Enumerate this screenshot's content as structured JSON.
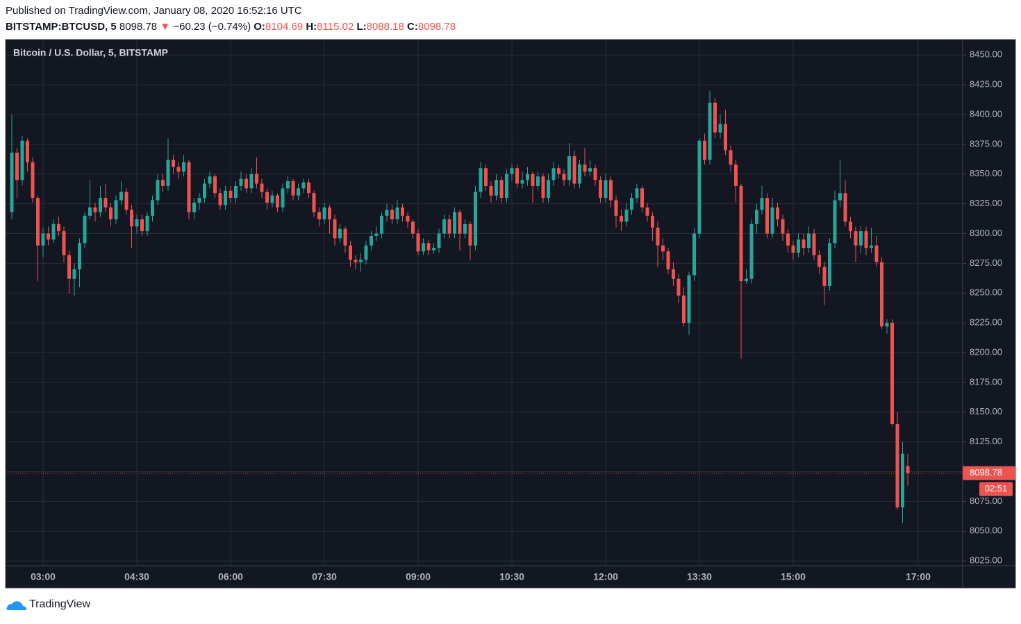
{
  "header": {
    "published": "Published on TradingView.com, January 08, 2020 16:52:16 UTC",
    "symbol": "BITSTAMP:BTCUSD, 5",
    "last": 8098.78,
    "change": "−60.23 (−0.74%)",
    "o_label": "O:",
    "o": 8104.69,
    "h_label": "H:",
    "h": 8115.02,
    "l_label": "L:",
    "l": 8088.18,
    "c_label": "C:",
    "c": 8098.78
  },
  "footer": {
    "brand": "TradingView"
  },
  "chart_data": {
    "type": "candlestick",
    "title": "Bitcoin / U.S. Dollar, 5, BITSTAMP",
    "up_color": "#26a69a",
    "down_color": "#ef5350",
    "grid": true,
    "countdown": "02:51",
    "x": [
      "02:30",
      "02:35",
      "02:40",
      "02:45",
      "02:50",
      "02:55",
      "03:00",
      "03:05",
      "03:10",
      "03:15",
      "03:20",
      "03:25",
      "03:30",
      "03:35",
      "03:40",
      "03:45",
      "03:50",
      "03:55",
      "04:00",
      "04:05",
      "04:10",
      "04:15",
      "04:20",
      "04:25",
      "04:30",
      "04:35",
      "04:40",
      "04:45",
      "04:50",
      "04:55",
      "05:00",
      "05:05",
      "05:10",
      "05:15",
      "05:20",
      "05:25",
      "05:30",
      "05:35",
      "05:40",
      "05:45",
      "05:50",
      "05:55",
      "06:00",
      "06:05",
      "06:10",
      "06:15",
      "06:20",
      "06:25",
      "06:30",
      "06:35",
      "06:40",
      "06:45",
      "06:50",
      "06:55",
      "07:00",
      "07:05",
      "07:10",
      "07:15",
      "07:20",
      "07:25",
      "07:30",
      "07:35",
      "07:40",
      "07:45",
      "07:50",
      "07:55",
      "08:00",
      "08:05",
      "08:10",
      "08:15",
      "08:20",
      "08:25",
      "08:30",
      "08:35",
      "08:40",
      "08:45",
      "08:50",
      "08:55",
      "09:00",
      "09:05",
      "09:10",
      "09:15",
      "09:20",
      "09:25",
      "09:30",
      "09:35",
      "09:40",
      "09:45",
      "09:50",
      "09:55",
      "10:00",
      "10:05",
      "10:10",
      "10:15",
      "10:20",
      "10:25",
      "10:30",
      "10:35",
      "10:40",
      "10:45",
      "10:50",
      "10:55",
      "11:00",
      "11:05",
      "11:10",
      "11:15",
      "11:20",
      "11:25",
      "11:30",
      "11:35",
      "11:40",
      "11:45",
      "11:50",
      "11:55",
      "12:00",
      "12:05",
      "12:10",
      "12:15",
      "12:20",
      "12:25",
      "12:30",
      "12:35",
      "12:40",
      "12:45",
      "12:50",
      "12:55",
      "13:00",
      "13:05",
      "13:10",
      "13:15",
      "13:20",
      "13:25",
      "13:30",
      "13:35",
      "13:40",
      "13:45",
      "13:50",
      "13:55",
      "14:00",
      "14:05",
      "14:10",
      "14:15",
      "14:20",
      "14:25",
      "14:30",
      "14:35",
      "14:40",
      "14:45",
      "14:50",
      "14:55",
      "15:00",
      "15:05",
      "15:10",
      "15:15",
      "15:20",
      "15:25",
      "15:30",
      "15:35",
      "15:40",
      "15:45",
      "15:50",
      "15:55",
      "16:00",
      "16:05",
      "16:10",
      "16:15",
      "16:20",
      "16:25",
      "16:30",
      "16:35",
      "16:40",
      "16:45",
      "16:50"
    ],
    "ohlc": [
      [
        8318,
        8400,
        8312,
        8368
      ],
      [
        8368,
        8372,
        8330,
        8345
      ],
      [
        8345,
        8382,
        8340,
        8378
      ],
      [
        8378,
        8380,
        8352,
        8360
      ],
      [
        8360,
        8364,
        8326,
        8330
      ],
      [
        8330,
        8332,
        8260,
        8290
      ],
      [
        8290,
        8305,
        8280,
        8300
      ],
      [
        8300,
        8306,
        8290,
        8295
      ],
      [
        8295,
        8312,
        8292,
        8308
      ],
      [
        8308,
        8314,
        8298,
        8302
      ],
      [
        8302,
        8306,
        8276,
        8282
      ],
      [
        8282,
        8286,
        8250,
        8262
      ],
      [
        8262,
        8275,
        8248,
        8270
      ],
      [
        8270,
        8296,
        8255,
        8292
      ],
      [
        8292,
        8318,
        8288,
        8315
      ],
      [
        8315,
        8345,
        8312,
        8322
      ],
      [
        8322,
        8326,
        8310,
        8318
      ],
      [
        8318,
        8340,
        8314,
        8330
      ],
      [
        8330,
        8342,
        8318,
        8322
      ],
      [
        8322,
        8326,
        8306,
        8312
      ],
      [
        8312,
        8332,
        8308,
        8328
      ],
      [
        8328,
        8344,
        8324,
        8335
      ],
      [
        8335,
        8338,
        8316,
        8320
      ],
      [
        8320,
        8324,
        8288,
        8306
      ],
      [
        8306,
        8316,
        8300,
        8312
      ],
      [
        8312,
        8316,
        8298,
        8302
      ],
      [
        8302,
        8318,
        8298,
        8315
      ],
      [
        8315,
        8332,
        8310,
        8328
      ],
      [
        8328,
        8350,
        8324,
        8345
      ],
      [
        8345,
        8350,
        8335,
        8340
      ],
      [
        8340,
        8380,
        8336,
        8362
      ],
      [
        8362,
        8366,
        8350,
        8356
      ],
      [
        8356,
        8360,
        8346,
        8352
      ],
      [
        8352,
        8366,
        8348,
        8360
      ],
      [
        8360,
        8362,
        8312,
        8318
      ],
      [
        8318,
        8330,
        8312,
        8326
      ],
      [
        8326,
        8334,
        8320,
        8330
      ],
      [
        8330,
        8346,
        8326,
        8342
      ],
      [
        8342,
        8352,
        8338,
        8348
      ],
      [
        8348,
        8350,
        8330,
        8334
      ],
      [
        8334,
        8338,
        8320,
        8324
      ],
      [
        8324,
        8340,
        8320,
        8336
      ],
      [
        8336,
        8340,
        8326,
        8330
      ],
      [
        8330,
        8344,
        8326,
        8340
      ],
      [
        8340,
        8352,
        8336,
        8346
      ],
      [
        8346,
        8350,
        8334,
        8338
      ],
      [
        8338,
        8355,
        8334,
        8350
      ],
      [
        8350,
        8364,
        8338,
        8342
      ],
      [
        8342,
        8346,
        8330,
        8335
      ],
      [
        8335,
        8338,
        8320,
        8326
      ],
      [
        8326,
        8336,
        8322,
        8332
      ],
      [
        8332,
        8334,
        8318,
        8322
      ],
      [
        8322,
        8342,
        8318,
        8338
      ],
      [
        8338,
        8348,
        8334,
        8344
      ],
      [
        8344,
        8346,
        8328,
        8332
      ],
      [
        8332,
        8342,
        8328,
        8338
      ],
      [
        8338,
        8346,
        8334,
        8343
      ],
      [
        8343,
        8346,
        8330,
        8334
      ],
      [
        8334,
        8336,
        8314,
        8318
      ],
      [
        8318,
        8322,
        8306,
        8312
      ],
      [
        8312,
        8326,
        8308,
        8322
      ],
      [
        8322,
        8324,
        8300,
        8312
      ],
      [
        8312,
        8316,
        8290,
        8296
      ],
      [
        8296,
        8308,
        8292,
        8304
      ],
      [
        8304,
        8306,
        8284,
        8290
      ],
      [
        8290,
        8294,
        8272,
        8278
      ],
      [
        8278,
        8282,
        8270,
        8276
      ],
      [
        8276,
        8284,
        8268,
        8278
      ],
      [
        8278,
        8294,
        8274,
        8290
      ],
      [
        8290,
        8302,
        8286,
        8298
      ],
      [
        8298,
        8306,
        8294,
        8300
      ],
      [
        8300,
        8318,
        8296,
        8315
      ],
      [
        8315,
        8325,
        8310,
        8320
      ],
      [
        8320,
        8324,
        8308,
        8312
      ],
      [
        8312,
        8328,
        8308,
        8322
      ],
      [
        8322,
        8325,
        8310,
        8315
      ],
      [
        8315,
        8318,
        8305,
        8310
      ],
      [
        8310,
        8312,
        8296,
        8300
      ],
      [
        8300,
        8304,
        8282,
        8285
      ],
      [
        8285,
        8296,
        8282,
        8292
      ],
      [
        8292,
        8295,
        8282,
        8286
      ],
      [
        8286,
        8292,
        8283,
        8288
      ],
      [
        8288,
        8304,
        8284,
        8300
      ],
      [
        8300,
        8316,
        8296,
        8312
      ],
      [
        8312,
        8316,
        8296,
        8300
      ],
      [
        8300,
        8322,
        8296,
        8318
      ],
      [
        8318,
        8320,
        8286,
        8300
      ],
      [
        8300,
        8312,
        8296,
        8308
      ],
      [
        8308,
        8310,
        8278,
        8290
      ],
      [
        8290,
        8340,
        8286,
        8335
      ],
      [
        8335,
        8360,
        8330,
        8355
      ],
      [
        8355,
        8358,
        8336,
        8340
      ],
      [
        8340,
        8344,
        8326,
        8332
      ],
      [
        8332,
        8350,
        8328,
        8345
      ],
      [
        8345,
        8348,
        8326,
        8330
      ],
      [
        8330,
        8354,
        8326,
        8350
      ],
      [
        8350,
        8358,
        8344,
        8355
      ],
      [
        8355,
        8358,
        8338,
        8342
      ],
      [
        8342,
        8352,
        8338,
        8345
      ],
      [
        8345,
        8356,
        8340,
        8350
      ],
      [
        8350,
        8352,
        8326,
        8340
      ],
      [
        8340,
        8352,
        8336,
        8348
      ],
      [
        8348,
        8350,
        8326,
        8330
      ],
      [
        8330,
        8350,
        8326,
        8345
      ],
      [
        8345,
        8360,
        8340,
        8355
      ],
      [
        8355,
        8358,
        8346,
        8350
      ],
      [
        8350,
        8354,
        8340,
        8345
      ],
      [
        8345,
        8376,
        8340,
        8365
      ],
      [
        8365,
        8370,
        8338,
        8342
      ],
      [
        8342,
        8362,
        8338,
        8358
      ],
      [
        8358,
        8372,
        8348,
        8352
      ],
      [
        8352,
        8362,
        8348,
        8355
      ],
      [
        8355,
        8358,
        8340,
        8345
      ],
      [
        8345,
        8348,
        8326,
        8330
      ],
      [
        8330,
        8350,
        8326,
        8345
      ],
      [
        8345,
        8348,
        8322,
        8328
      ],
      [
        8328,
        8332,
        8305,
        8315
      ],
      [
        8315,
        8320,
        8302,
        8310
      ],
      [
        8310,
        8326,
        8306,
        8320
      ],
      [
        8320,
        8334,
        8316,
        8330
      ],
      [
        8330,
        8342,
        8326,
        8338
      ],
      [
        8338,
        8340,
        8318,
        8322
      ],
      [
        8322,
        8326,
        8310,
        8315
      ],
      [
        8315,
        8318,
        8294,
        8305
      ],
      [
        8305,
        8310,
        8272,
        8290
      ],
      [
        8290,
        8296,
        8278,
        8285
      ],
      [
        8285,
        8288,
        8266,
        8270
      ],
      [
        8270,
        8276,
        8256,
        8262
      ],
      [
        8262,
        8266,
        8242,
        8248
      ],
      [
        8248,
        8255,
        8222,
        8225
      ],
      [
        8225,
        8268,
        8215,
        8265
      ],
      [
        8265,
        8305,
        8260,
        8300
      ],
      [
        8300,
        8380,
        8296,
        8378
      ],
      [
        8378,
        8384,
        8358,
        8362
      ],
      [
        8362,
        8420,
        8358,
        8410
      ],
      [
        8410,
        8414,
        8380,
        8385
      ],
      [
        8385,
        8400,
        8380,
        8392
      ],
      [
        8392,
        8404,
        8366,
        8370
      ],
      [
        8370,
        8374,
        8352,
        8358
      ],
      [
        8358,
        8362,
        8326,
        8340
      ],
      [
        8340,
        8342,
        8195,
        8260
      ],
      [
        8260,
        8270,
        8258,
        8262
      ],
      [
        8262,
        8312,
        8258,
        8308
      ],
      [
        8308,
        8325,
        8300,
        8320
      ],
      [
        8320,
        8340,
        8316,
        8330
      ],
      [
        8330,
        8334,
        8296,
        8300
      ],
      [
        8300,
        8330,
        8296,
        8322
      ],
      [
        8322,
        8326,
        8306,
        8312
      ],
      [
        8312,
        8316,
        8294,
        8300
      ],
      [
        8300,
        8304,
        8284,
        8290
      ],
      [
        8290,
        8294,
        8278,
        8284
      ],
      [
        8284,
        8300,
        8280,
        8295
      ],
      [
        8295,
        8300,
        8282,
        8288
      ],
      [
        8288,
        8306,
        8284,
        8300
      ],
      [
        8300,
        8304,
        8278,
        8282
      ],
      [
        8282,
        8286,
        8266,
        8272
      ],
      [
        8272,
        8276,
        8240,
        8256
      ],
      [
        8256,
        8296,
        8252,
        8292
      ],
      [
        8292,
        8336,
        8288,
        8328
      ],
      [
        8328,
        8362,
        8322,
        8334
      ],
      [
        8334,
        8345,
        8306,
        8310
      ],
      [
        8310,
        8314,
        8296,
        8302
      ],
      [
        8302,
        8306,
        8276,
        8290
      ],
      [
        8290,
        8306,
        8284,
        8302
      ],
      [
        8302,
        8306,
        8282,
        8288
      ],
      [
        8288,
        8305,
        8284,
        8290
      ],
      [
        8290,
        8298,
        8272,
        8276
      ],
      [
        8276,
        8280,
        8220,
        8222
      ],
      [
        8222,
        8228,
        8216,
        8225
      ],
      [
        8225,
        8228,
        8138,
        8140
      ],
      [
        8140,
        8150,
        8068,
        8070
      ],
      [
        8070,
        8125,
        8057,
        8115
      ],
      [
        8104.69,
        8115.02,
        8088.18,
        8098.78
      ]
    ],
    "ylim": [
      8021,
      8463
    ],
    "yticks": [
      {
        "value": 8025,
        "label": "8025.00"
      },
      {
        "value": 8050,
        "label": "8050.00"
      },
      {
        "value": 8075,
        "label": "8075.00"
      },
      {
        "value": 8100,
        "label": "8100.00"
      },
      {
        "value": 8125,
        "label": "8125.00"
      },
      {
        "value": 8150,
        "label": "8150.00"
      },
      {
        "value": 8175,
        "label": "8175.00"
      },
      {
        "value": 8200,
        "label": "8200.00"
      },
      {
        "value": 8225,
        "label": "8225.00"
      },
      {
        "value": 8250,
        "label": "8250.00"
      },
      {
        "value": 8275,
        "label": "8275.00"
      },
      {
        "value": 8300,
        "label": "8300.00"
      },
      {
        "value": 8325,
        "label": "8325.00"
      },
      {
        "value": 8350,
        "label": "8350.00"
      },
      {
        "value": 8375,
        "label": "8375.00"
      },
      {
        "value": 8400,
        "label": "8400.00"
      },
      {
        "value": 8425,
        "label": "8425.00"
      },
      {
        "value": 8450,
        "label": "8450.00"
      }
    ],
    "xticks": [
      "03:00",
      "04:30",
      "06:00",
      "07:30",
      "09:00",
      "10:30",
      "12:00",
      "13:30",
      "15:00",
      "17:00"
    ]
  }
}
